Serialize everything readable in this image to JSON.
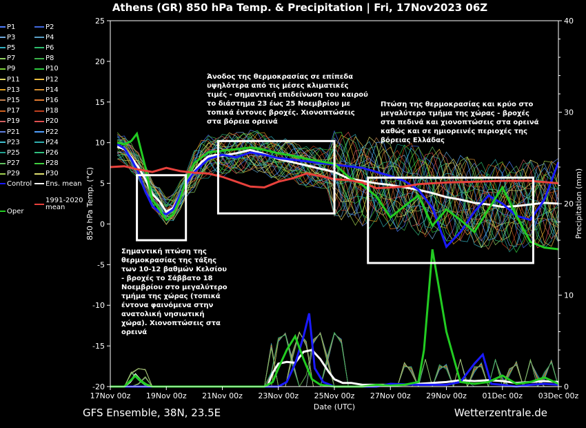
{
  "title": "Athens  (GR)  850 hPa Temp. & Precipitation | Fri, 17Nov2023 06Z",
  "footer": {
    "left": "GFS Ensemble, 38N, 23.5E",
    "right": "Wetterzentrale.de"
  },
  "colors": {
    "background": "#000000",
    "control": "#1a1aff",
    "ens_mean": "#ffffff",
    "climate_mean": "#e8413c",
    "oper": "#22cc22",
    "annotation_box": "#ffffff"
  },
  "legend": [
    {
      "label": "P1",
      "color": "#4d7dff"
    },
    {
      "label": "P2",
      "color": "#4169e1"
    },
    {
      "label": "P3",
      "color": "#6fa8dc"
    },
    {
      "label": "P4",
      "color": "#5aa0c8"
    },
    {
      "label": "P5",
      "color": "#30b0c0"
    },
    {
      "label": "P6",
      "color": "#2dbf6e"
    },
    {
      "label": "P7",
      "color": "#8fd160"
    },
    {
      "label": "P8",
      "color": "#3cb44b"
    },
    {
      "label": "P9",
      "color": "#7bd137"
    },
    {
      "label": "P10",
      "color": "#2ecc40"
    },
    {
      "label": "P11",
      "color": "#e0d860"
    },
    {
      "label": "P12",
      "color": "#f0c040"
    },
    {
      "label": "P13",
      "color": "#e0a020"
    },
    {
      "label": "P14",
      "color": "#d89030"
    },
    {
      "label": "P15",
      "color": "#c08050"
    },
    {
      "label": "P16",
      "color": "#e07a30"
    },
    {
      "label": "P17",
      "color": "#d06020"
    },
    {
      "label": "P18",
      "color": "#c04020"
    },
    {
      "label": "P19",
      "color": "#d06060"
    },
    {
      "label": "P20",
      "color": "#e05050"
    },
    {
      "label": "P21",
      "color": "#6080e0"
    },
    {
      "label": "P22",
      "color": "#50a0ff"
    },
    {
      "label": "P23",
      "color": "#40c0d0"
    },
    {
      "label": "P24",
      "color": "#30b0b0"
    },
    {
      "label": "P25",
      "color": "#20a090"
    },
    {
      "label": "P26",
      "color": "#30c080"
    },
    {
      "label": "P27",
      "color": "#60c060"
    },
    {
      "label": "P28",
      "color": "#40d040"
    },
    {
      "label": "P29",
      "color": "#a0d050"
    },
    {
      "label": "P30",
      "color": "#e0e070"
    },
    {
      "label": "Control",
      "color": "#1a1aff"
    },
    {
      "label": "Ens. mean",
      "color": "#ffffff"
    },
    {
      "label": "Oper",
      "color": "#22cc22"
    },
    {
      "label": "1991-2020 mean",
      "color": "#e8413c"
    }
  ],
  "annotations": [
    {
      "id": "drop",
      "text": "Σημαντική πτώση της θερμοκρασίας της τάξης των 10-12 βαθμών Κελσίου - βροχές το Σάββατο 18 Νοεμβρίου στο μεγαλύτερο τμήμα της χώρας (τοπικά έντονα φαινόμενα στην ανατολική νησιωτική χώρα). Χιονοπτώσεις στα ορεινά"
    },
    {
      "id": "rise",
      "text": "Άνοδος της θερμοκρασίας σε επίπεδα υψηλότερα από τις μέσες κλιματικές τιμές - σημαντική επιδείνωση του καιρού το διάστημα 23 έως 25 Νοεμβρίου με τοπικά έντονες βροχές. Χιονοπτώσεις στα βόρεια ορεινά"
    },
    {
      "id": "fall",
      "text": "Πτώση της θερμοκρασίας και κρύο στο μεγαλύτερο τμήμα της χώρας - βροχές στα πεδινά και χιονοπτώσεις στα ορεινά καθώς και σε ημιορεινές περιοχές της βόρειας Ελλάδας"
    }
  ],
  "chart_data": {
    "type": "line",
    "title": "Athens  (GR)  850 hPa Temp. & Precipitation | Fri, 17Nov2023 06Z",
    "xlabel": "Date (UTC)",
    "ylabel": "850 hPa Temp. (°C)",
    "y2label": "Precipitation (mm)",
    "ylim": [
      -20,
      25
    ],
    "y2lim": [
      0,
      40
    ],
    "yticks": [
      -20,
      -15,
      -10,
      -5,
      0,
      5,
      10,
      15,
      20,
      25
    ],
    "y2ticks": [
      0,
      10,
      20,
      30,
      40
    ],
    "xlim": [
      0,
      16
    ],
    "x_ticks": [
      {
        "x": 0,
        "label": "17Nov 00z"
      },
      {
        "x": 2,
        "label": "19Nov 00z"
      },
      {
        "x": 4,
        "label": "21Nov 00z"
      },
      {
        "x": 6,
        "label": "23Nov 00z"
      },
      {
        "x": 8,
        "label": "25Nov 00z"
      },
      {
        "x": 10,
        "label": "27Nov 00z"
      },
      {
        "x": 12,
        "label": "29Nov 00z"
      },
      {
        "x": 14,
        "label": "01Dec 00z"
      },
      {
        "x": 16,
        "label": "03Dec 00z"
      }
    ],
    "grid": false,
    "legend_position": "left",
    "highlight_boxes": [
      {
        "x0": 0.95,
        "x1": 2.7,
        "y0": -2,
        "y1": 6
      },
      {
        "x0": 3.85,
        "x1": 8.0,
        "y0": 1.3,
        "y1": 10.2
      },
      {
        "x0": 9.2,
        "x1": 15.1,
        "y0": -4.8,
        "y1": 5.7
      }
    ],
    "temperature_series": [
      {
        "name": "Ens. mean",
        "x": [
          0.25,
          0.5,
          0.75,
          1,
          1.25,
          1.5,
          1.75,
          2,
          2.25,
          2.5,
          2.75,
          3,
          3.25,
          3.5,
          3.75,
          4,
          4.5,
          5,
          5.5,
          6,
          6.5,
          7,
          7.5,
          8,
          8.5,
          9,
          9.5,
          10,
          10.5,
          11,
          11.5,
          12,
          12.5,
          13,
          13.5,
          14,
          14.5,
          15,
          15.5,
          16
        ],
        "y": [
          9.5,
          9.2,
          8.2,
          7,
          5.5,
          3.7,
          2.8,
          1.5,
          2,
          3.6,
          5.2,
          6.5,
          7.6,
          8.3,
          8.5,
          8.4,
          8.7,
          9.1,
          8.6,
          8,
          7.6,
          7.2,
          6.8,
          6.4,
          5.6,
          5.3,
          5,
          4.8,
          4.5,
          4.2,
          3.8,
          3.3,
          3,
          2.6,
          2.4,
          2.1,
          2.2,
          2.4,
          2.6,
          2.5
        ]
      },
      {
        "name": "Control",
        "x": [
          0.25,
          0.5,
          0.75,
          1,
          1.25,
          1.5,
          1.75,
          2,
          2.25,
          2.5,
          2.75,
          3,
          3.5,
          4,
          4.5,
          5,
          5.5,
          6,
          6.5,
          7,
          7.5,
          8,
          8.5,
          9,
          9.5,
          10,
          10.5,
          11,
          11.5,
          12,
          12.5,
          13,
          13.5,
          14,
          14.5,
          15,
          15.5,
          16
        ],
        "y": [
          9.8,
          9.3,
          8,
          6.3,
          4,
          2.2,
          1.5,
          1.2,
          1.8,
          3.6,
          5.2,
          6.4,
          8,
          8.5,
          8.2,
          8.8,
          8.5,
          8.1,
          7.9,
          7.7,
          7.5,
          7.3,
          7.1,
          6.9,
          6.4,
          5.9,
          5.3,
          4.2,
          2,
          -2.8,
          -1,
          1.5,
          3.5,
          2.5,
          1,
          0.5,
          3,
          7.6
        ]
      },
      {
        "name": "Oper",
        "x": [
          0.25,
          0.5,
          0.75,
          0.95,
          1.25,
          1.5,
          1.75,
          2,
          2.25,
          2.5,
          2.75,
          3,
          3.5,
          4,
          4.5,
          5,
          5.5,
          6,
          6.5,
          7,
          7.5,
          8,
          8.5,
          9,
          9.5,
          10,
          10.5,
          11,
          11.5,
          12,
          12.5,
          13,
          13.5,
          14,
          14.5,
          15,
          15.5,
          16
        ],
        "y": [
          10,
          9.8,
          10.2,
          11.1,
          7,
          3,
          1.8,
          0.5,
          1.2,
          3.2,
          5.8,
          7.5,
          8.8,
          9,
          9.2,
          9.4,
          9.1,
          8.7,
          8.4,
          8,
          7.7,
          7.4,
          5.8,
          4.8,
          3.4,
          0.8,
          2.2,
          3.5,
          -0.2,
          1.8,
          0.5,
          -1,
          1.8,
          4.5,
          1,
          -2.2,
          -2.9,
          -3.1
        ]
      },
      {
        "name": "1991-2020 mean",
        "x": [
          0,
          0.5,
          1,
          1.5,
          2,
          2.5,
          3,
          3.5,
          4,
          4.5,
          5,
          5.5,
          6,
          6.5,
          7,
          7.5,
          8,
          8.5,
          9,
          9.5,
          10,
          10.5,
          11,
          12,
          13,
          14,
          15,
          16
        ],
        "y": [
          7,
          7.1,
          6.7,
          6.4,
          6.9,
          6.5,
          6.3,
          6.2,
          5.8,
          5.2,
          4.6,
          4.5,
          5.2,
          5.6,
          6.2,
          5.9,
          5.5,
          5.4,
          5.1,
          4.4,
          4.5,
          4.6,
          4.9,
          5.1,
          5.2,
          5.3,
          5.3,
          5.0
        ]
      }
    ],
    "precipitation_series": [
      {
        "name": "Ens. mean",
        "x": [
          0,
          0.5,
          0.7,
          0.9,
          1.1,
          1.3,
          1.5,
          2,
          2.5,
          3,
          3.5,
          4,
          4.5,
          5,
          5.3,
          5.6,
          5.8,
          6,
          6.3,
          6.6,
          6.9,
          7.2,
          7.5,
          7.8,
          8,
          8.3,
          8.6,
          9,
          9.5,
          10,
          10.5,
          11,
          11.5,
          12,
          12.5,
          13,
          13.5,
          14,
          14.5,
          15,
          15.5,
          16
        ],
        "y": [
          0,
          0,
          0.5,
          1.3,
          0.6,
          0.2,
          0,
          0,
          0,
          0,
          0,
          0,
          0,
          0,
          0,
          0,
          1.5,
          2.5,
          2.7,
          2.6,
          3.8,
          4,
          3,
          1.6,
          0.8,
          0.4,
          0.4,
          0.2,
          0.2,
          0.2,
          0.2,
          0.3,
          0.4,
          0.5,
          0.7,
          0.6,
          0.7,
          0.6,
          0.4,
          0.5,
          0.6,
          0.5
        ]
      },
      {
        "name": "Control",
        "x": [
          0,
          0.5,
          1,
          1.5,
          2,
          2.5,
          3,
          3.5,
          4,
          4.5,
          5,
          5.5,
          6,
          6.3,
          6.6,
          6.9,
          7.1,
          7.3,
          7.6,
          8,
          8.5,
          9,
          9.5,
          10,
          11,
          12,
          12.5,
          13,
          13.3,
          13.6,
          14,
          14.5,
          15,
          15.5,
          16
        ],
        "y": [
          0,
          0,
          0,
          0,
          0,
          0,
          0,
          0,
          0,
          0,
          0,
          0,
          0,
          0.5,
          2.5,
          5.5,
          8,
          2,
          0.5,
          0,
          0,
          0,
          0,
          0.3,
          0.2,
          0.2,
          0.5,
          2.5,
          3.5,
          0.3,
          0.2,
          0,
          0.2,
          0.3,
          0.2
        ]
      },
      {
        "name": "Oper",
        "x": [
          0,
          0.5,
          0.7,
          0.9,
          1.1,
          1.3,
          1.5,
          2,
          3,
          4,
          5,
          5.5,
          5.8,
          6,
          6.3,
          6.6,
          6.9,
          7.2,
          7.5,
          8,
          8.5,
          9,
          9.5,
          10,
          10.5,
          11,
          11.2,
          11.5,
          12,
          12.5,
          13,
          13.5,
          14,
          14.5,
          15,
          15.5,
          16
        ],
        "y": [
          0,
          0,
          0.6,
          1.2,
          0.6,
          0.2,
          0,
          0,
          0,
          0,
          0,
          0,
          0.5,
          2,
          4,
          5.5,
          3,
          0.8,
          0.2,
          0,
          0,
          0,
          0.2,
          0.1,
          0.2,
          0.5,
          4,
          15,
          6,
          0.5,
          0.3,
          0.5,
          1.2,
          0.3,
          0.5,
          1,
          0.3
        ]
      }
    ]
  }
}
